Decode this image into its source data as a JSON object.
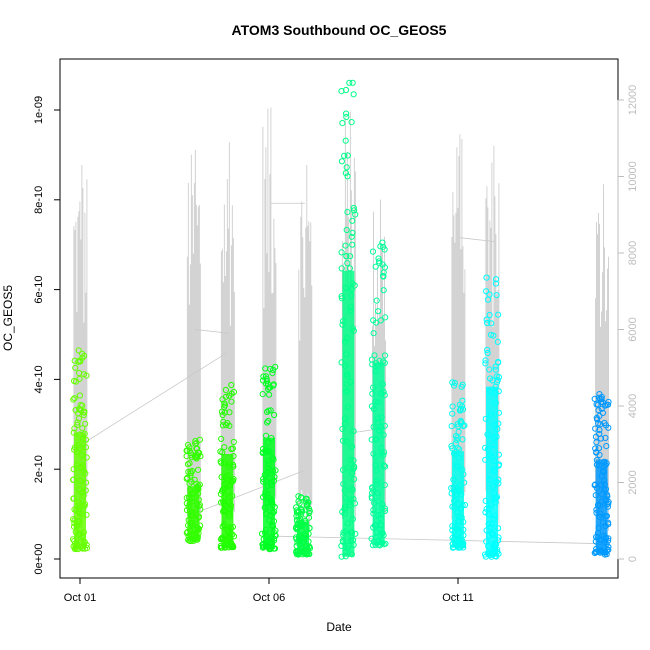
{
  "chart_data": {
    "type": "scatter",
    "title": "ATOM3 Southbound OC_GEOS5",
    "xlabel": "Date",
    "ylabel": "OC_GEOS5",
    "x_ticks": [
      "Oct 01",
      "Oct 06",
      "Oct 11"
    ],
    "y_ticks": [
      "0e+00",
      "2e-10",
      "4e-10",
      "6e-10",
      "8e-10",
      "1e-09"
    ],
    "y_right_ticks": [
      "0",
      "2000",
      "4000",
      "6000",
      "8000",
      "10000",
      "12000"
    ],
    "xlim_days": [
      0.0,
      14.6
    ],
    "ylim": [
      0,
      1.1e-09
    ],
    "y_right_lim": [
      0,
      12500
    ],
    "secondary_series_color": "#c8c8c8",
    "series": [
      {
        "day": 0.0,
        "ymin": 2.2e-11,
        "ymax": 4.7e-10,
        "color": "#66ff00"
      },
      {
        "day": 3.0,
        "ymin": 4e-11,
        "ymax": 2.7e-10,
        "color": "#33ff00"
      },
      {
        "day": 3.9,
        "ymin": 2.5e-11,
        "ymax": 3.9e-10,
        "color": "#22ff00"
      },
      {
        "day": 5.0,
        "ymin": 2.2e-11,
        "ymax": 4.5e-10,
        "color": "#00ff22"
      },
      {
        "day": 5.9,
        "ymin": 1e-11,
        "ymax": 1.4e-10,
        "color": "#00ff44"
      },
      {
        "day": 7.1,
        "ymin": 5e-12,
        "ymax": 1.07e-09,
        "color": "#00ff88"
      },
      {
        "day": 7.9,
        "ymin": 3e-11,
        "ymax": 7.3e-10,
        "color": "#00ff99"
      },
      {
        "day": 10.0,
        "ymin": 2.5e-11,
        "ymax": 4e-10,
        "color": "#00ffee"
      },
      {
        "day": 10.9,
        "ymin": 5e-12,
        "ymax": 6.4e-10,
        "color": "#00ffff"
      },
      {
        "day": 13.8,
        "ymin": 1e-11,
        "ymax": 3.7e-10,
        "color": "#0099ff"
      }
    ],
    "secondary_spikes": [
      {
        "day": 0.05,
        "value": 10300
      },
      {
        "day": 3.05,
        "value": 10700
      },
      {
        "day": 3.95,
        "value": 10900
      },
      {
        "day": 5.05,
        "value": 11800
      },
      {
        "day": 6.0,
        "value": 10300
      },
      {
        "day": 7.15,
        "value": 11700
      },
      {
        "day": 7.95,
        "value": 9400
      },
      {
        "day": 10.05,
        "value": 11100
      },
      {
        "day": 10.95,
        "value": 10800
      },
      {
        "day": 13.85,
        "value": 9800
      }
    ]
  }
}
